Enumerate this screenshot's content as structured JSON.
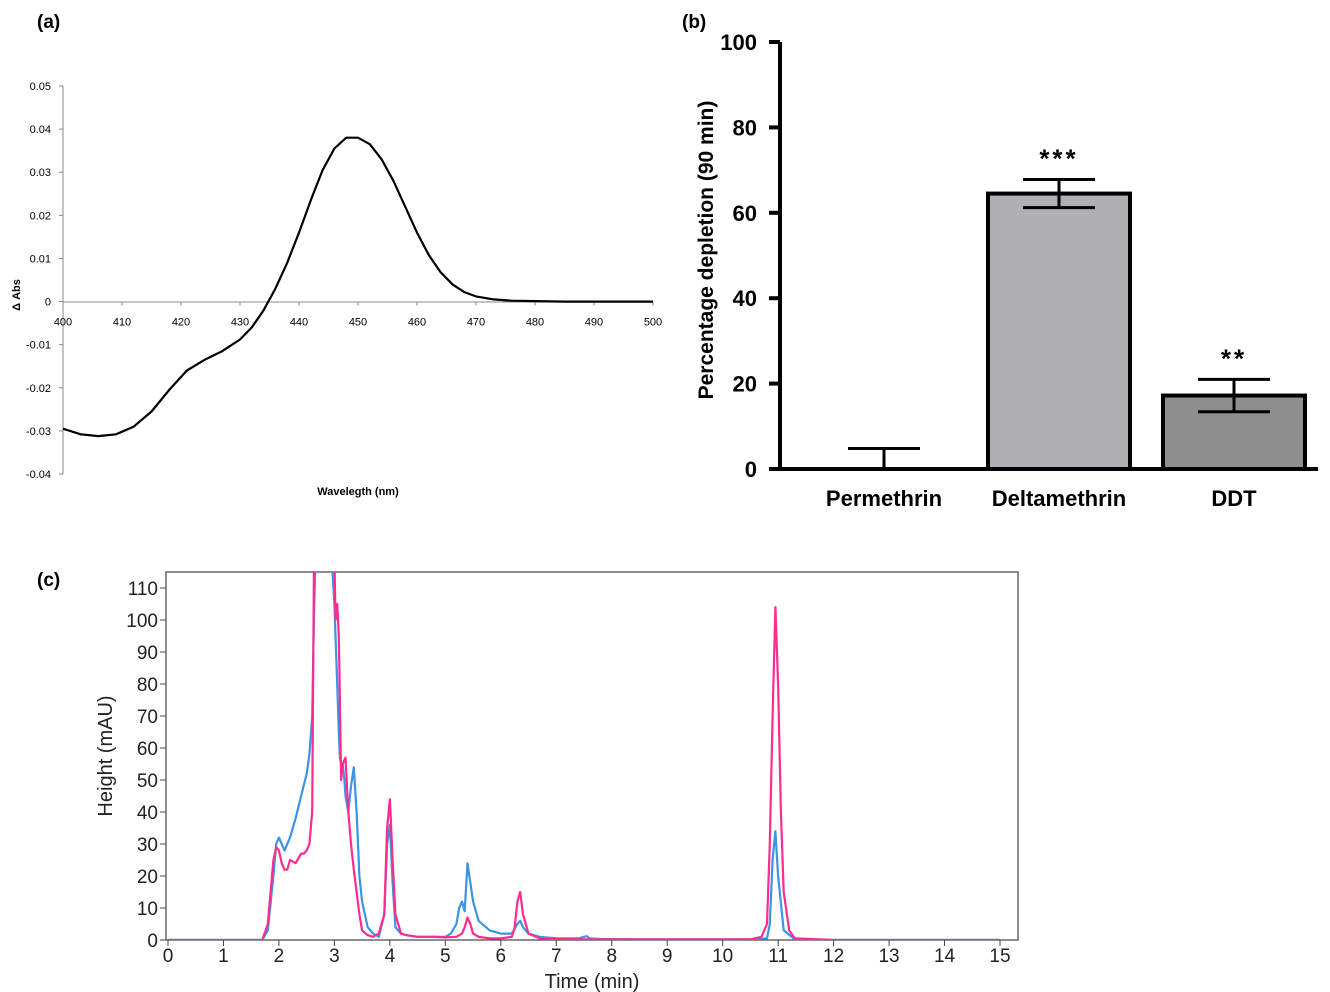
{
  "panels": {
    "a": {
      "label": "(a)"
    },
    "b": {
      "label": "(b)"
    },
    "c": {
      "label": "(c)"
    }
  },
  "chart_data": [
    {
      "id": "a",
      "type": "line",
      "title": "",
      "xlabel": "Wavelegth (nm)",
      "ylabel": "Δ Abs",
      "xlim": [
        400,
        500
      ],
      "ylim": [
        -0.04,
        0.05
      ],
      "x_ticks": [
        "400",
        "410",
        "420",
        "430",
        "440",
        "450",
        "460",
        "470",
        "480",
        "490",
        "500"
      ],
      "y_ticks": [
        "0.05",
        "0.04",
        "0.03",
        "0.02",
        "0.01",
        "0",
        "-0.01",
        "-0.02",
        "-0.03",
        "-0.04"
      ],
      "grid": false,
      "series": [
        {
          "color": "#000000",
          "x": [
            400,
            403,
            406,
            409,
            412,
            415,
            418,
            421,
            424,
            427,
            430,
            432,
            434,
            436,
            438,
            440,
            442,
            444,
            446,
            448,
            450,
            452,
            454,
            456,
            458,
            460,
            462,
            464,
            466,
            468,
            470,
            473,
            476,
            480,
            485,
            490,
            495,
            500
          ],
          "y": [
            -0.0295,
            -0.0308,
            -0.0312,
            -0.0308,
            -0.029,
            -0.0255,
            -0.0205,
            -0.016,
            -0.0135,
            -0.0115,
            -0.0088,
            -0.006,
            -0.002,
            0.003,
            0.009,
            0.016,
            0.0235,
            0.0305,
            0.0355,
            0.038,
            0.038,
            0.0365,
            0.033,
            0.028,
            0.022,
            0.016,
            0.0108,
            0.0068,
            0.004,
            0.0022,
            0.0012,
            0.0005,
            0.0002,
            0.0001,
            0,
            0,
            0,
            0
          ]
        }
      ]
    },
    {
      "id": "b",
      "type": "bar",
      "title": "",
      "xlabel": "",
      "ylabel": "Percentage depletion (90 min)",
      "ylim": [
        0,
        100
      ],
      "y_ticks": [
        "0",
        "20",
        "40",
        "60",
        "80",
        "100"
      ],
      "categories": [
        "Permethrin",
        "Deltamethrin",
        "DDT"
      ],
      "values": [
        0,
        64.5,
        17.2
      ],
      "errors": [
        4.8,
        3.3,
        3.8
      ],
      "significance": [
        "",
        "***",
        "**"
      ],
      "bar_colors": [
        "#b0afb4",
        "#b0afb4",
        "#8e8e8e"
      ],
      "grid": false
    },
    {
      "id": "c",
      "type": "line",
      "title": "",
      "xlabel": "Time (min)",
      "ylabel": "Height (mAU)",
      "xlim": [
        0,
        15
      ],
      "ylim": [
        0,
        115
      ],
      "x_ticks": [
        "0",
        "1",
        "2",
        "3",
        "4",
        "5",
        "6",
        "7",
        "8",
        "9",
        "10",
        "11",
        "12",
        "13",
        "14",
        "15"
      ],
      "y_ticks": [
        "0",
        "10",
        "20",
        "30",
        "40",
        "50",
        "60",
        "70",
        "80",
        "90",
        "100",
        "110"
      ],
      "grid": false,
      "series": [
        {
          "color": "#3b94e6",
          "x": [
            0,
            1.7,
            1.8,
            1.9,
            1.95,
            2.0,
            2.05,
            2.1,
            2.2,
            2.3,
            2.4,
            2.5,
            2.55,
            2.6,
            2.63,
            2.66,
            2.7,
            2.75,
            2.8,
            2.85,
            2.9,
            2.95,
            3.0,
            3.02,
            3.05,
            3.08,
            3.1,
            3.12,
            3.15,
            3.18,
            3.2,
            3.25,
            3.3,
            3.35,
            3.4,
            3.45,
            3.5,
            3.6,
            3.7,
            3.8,
            3.9,
            3.95,
            4.0,
            4.05,
            4.1,
            4.2,
            4.3,
            4.5,
            4.8,
            5.0,
            5.1,
            5.2,
            5.25,
            5.3,
            5.35,
            5.4,
            5.45,
            5.5,
            5.6,
            5.8,
            6.0,
            6.2,
            6.3,
            6.35,
            6.4,
            6.5,
            6.7,
            7.0,
            7.4,
            7.5,
            7.55,
            7.6,
            7.8,
            8.5,
            9.5,
            10.5,
            10.8,
            10.85,
            10.9,
            10.95,
            11.0,
            11.1,
            11.3,
            12,
            13,
            14,
            15
          ],
          "y": [
            0,
            0,
            3,
            20,
            30,
            32,
            30,
            28,
            32,
            38,
            45,
            52,
            58,
            70,
            100,
            120,
            120,
            120,
            120,
            120,
            120,
            120,
            105,
            95,
            80,
            65,
            57,
            55,
            55,
            50,
            45,
            40,
            48,
            54,
            40,
            20,
            12,
            4,
            2,
            1,
            8,
            30,
            36,
            18,
            4,
            2,
            1.5,
            1,
            1,
            1,
            2,
            5,
            10,
            12,
            9,
            24,
            18,
            12,
            6,
            3,
            2,
            2,
            5,
            6,
            4,
            2,
            1,
            0.5,
            0.5,
            1,
            1.2,
            0.5,
            0.3,
            0.2,
            0.2,
            0.2,
            0.5,
            5,
            25,
            34,
            20,
            3,
            0.2,
            0,
            0,
            0,
            0
          ]
        },
        {
          "color": "#ff2b8f",
          "x": [
            0,
            1.7,
            1.8,
            1.85,
            1.9,
            1.95,
            2.0,
            2.05,
            2.1,
            2.15,
            2.2,
            2.3,
            2.4,
            2.45,
            2.5,
            2.55,
            2.6,
            2.63,
            2.66,
            2.7,
            2.75,
            2.8,
            2.85,
            2.9,
            2.95,
            3.0,
            3.02,
            3.05,
            3.08,
            3.1,
            3.12,
            3.15,
            3.2,
            3.25,
            3.3,
            3.35,
            3.4,
            3.45,
            3.5,
            3.6,
            3.7,
            3.8,
            3.9,
            3.95,
            4.0,
            4.05,
            4.1,
            4.2,
            4.3,
            4.5,
            4.8,
            5.0,
            5.2,
            5.3,
            5.35,
            5.4,
            5.45,
            5.5,
            5.6,
            5.8,
            6.0,
            6.2,
            6.25,
            6.3,
            6.35,
            6.4,
            6.5,
            6.7,
            7.0,
            7.5,
            8.5,
            9.5,
            10.5,
            10.7,
            10.8,
            10.85,
            10.9,
            10.95,
            11.0,
            11.05,
            11.1,
            11.2,
            11.3,
            12,
            13,
            14,
            15
          ],
          "y": [
            0,
            0,
            5,
            15,
            25,
            29,
            28,
            24,
            22,
            22,
            25,
            24,
            27,
            27,
            28,
            30,
            40,
            115,
            120,
            120,
            120,
            120,
            120,
            120,
            120,
            120,
            100,
            105,
            95,
            75,
            50,
            55,
            57,
            40,
            30,
            22,
            15,
            8,
            3,
            1.5,
            1,
            2,
            8,
            35,
            44,
            25,
            8,
            2,
            1.5,
            1,
            1,
            0.8,
            1,
            2,
            4,
            7,
            5,
            2,
            1,
            0.5,
            0.5,
            1,
            4,
            12,
            15,
            8,
            2,
            0.5,
            0.3,
            0.2,
            0.2,
            0.2,
            0.2,
            1,
            5,
            30,
            70,
            104,
            80,
            40,
            15,
            3,
            0.5,
            0,
            0,
            0,
            0
          ]
        }
      ]
    }
  ]
}
